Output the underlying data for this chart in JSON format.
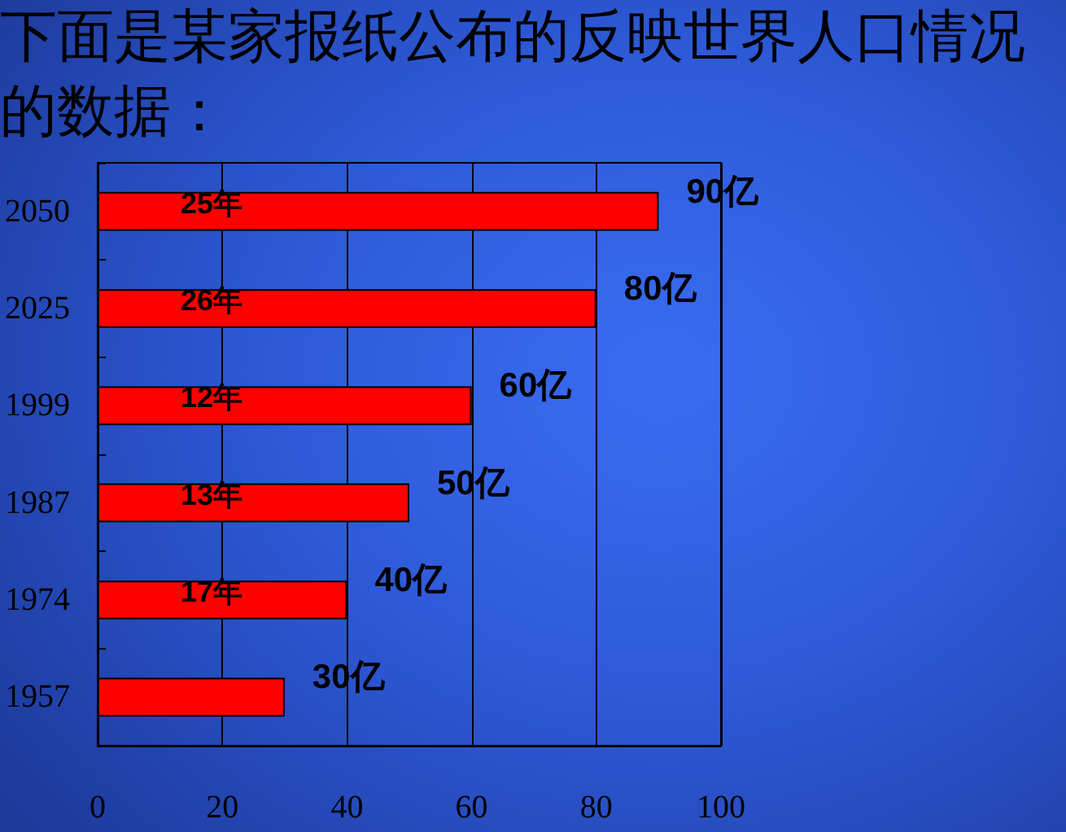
{
  "chart_data": {
    "type": "bar",
    "orientation": "horizontal",
    "title": "下面是某家报纸公布的反映世界人口情况的数据：",
    "categories": [
      "2050",
      "2025",
      "1999",
      "1987",
      "1974",
      "1957"
    ],
    "values": [
      90,
      80,
      60,
      50,
      40,
      30
    ],
    "color": "#ff0000",
    "value_labels": [
      "90亿",
      "80亿",
      "60亿",
      "50亿",
      "40亿",
      "30亿"
    ],
    "xlim": [
      0,
      100
    ],
    "xticks": [
      0,
      20,
      40,
      60,
      80,
      100
    ],
    "grid": "x",
    "annotations": [
      "25年",
      "26年",
      "12年",
      "13年",
      "17年"
    ]
  }
}
